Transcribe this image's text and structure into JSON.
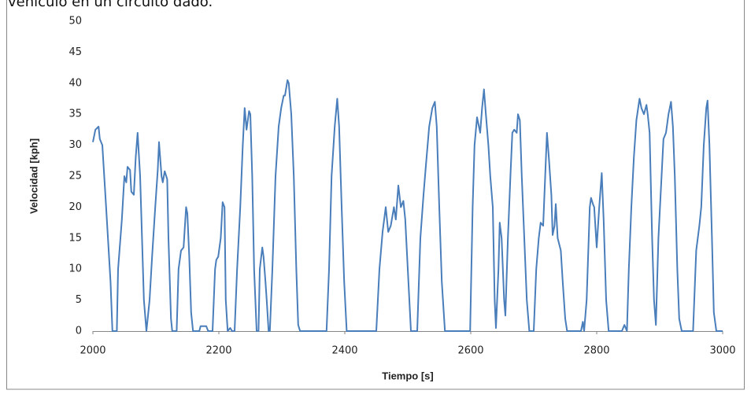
{
  "caption": "vehículo en un circuito dado.",
  "chart_data": {
    "type": "line",
    "x_label": "Tiempo [s]",
    "y_label": "Velocidad [kph]",
    "xlim": [
      2000,
      3000
    ],
    "xticks": [
      2000,
      2200,
      2400,
      2600,
      2800,
      3000
    ],
    "ylim": [
      0,
      50
    ],
    "yticks": [
      0,
      5,
      10,
      15,
      20,
      25,
      30,
      35,
      40,
      45,
      50
    ],
    "grid": false,
    "x": [
      2000,
      2004,
      2009,
      2011,
      2015,
      2021,
      2028,
      2031,
      2038,
      2040,
      2046,
      2050,
      2053,
      2055,
      2059,
      2061,
      2065,
      2068,
      2071,
      2075,
      2078,
      2081,
      2085,
      2090,
      2094,
      2099,
      2103,
      2105,
      2109,
      2111,
      2114,
      2118,
      2120,
      2124,
      2126,
      2133,
      2136,
      2140,
      2144,
      2148,
      2150,
      2153,
      2156,
      2159,
      2169,
      2171,
      2180,
      2183,
      2190,
      2194,
      2196,
      2199,
      2203,
      2206,
      2209,
      2211,
      2214,
      2218,
      2221,
      2225,
      2229,
      2234,
      2238,
      2241,
      2244,
      2248,
      2250,
      2253,
      2256,
      2260,
      2263,
      2265,
      2269,
      2271,
      2274,
      2276,
      2279,
      2281,
      2285,
      2290,
      2295,
      2299,
      2303,
      2305,
      2309,
      2311,
      2315,
      2319,
      2323,
      2326,
      2329,
      2371,
      2375,
      2379,
      2384,
      2388,
      2391,
      2395,
      2399,
      2403,
      2450,
      2455,
      2460,
      2465,
      2469,
      2473,
      2478,
      2481,
      2485,
      2489,
      2493,
      2496,
      2500,
      2505,
      2515,
      2520,
      2525,
      2529,
      2534,
      2539,
      2543,
      2546,
      2550,
      2554,
      2559,
      2599,
      2603,
      2606,
      2610,
      2613,
      2615,
      2618,
      2621,
      2624,
      2628,
      2631,
      2635,
      2638,
      2640,
      2644,
      2646,
      2649,
      2653,
      2655,
      2659,
      2663,
      2666,
      2669,
      2673,
      2675,
      2678,
      2681,
      2685,
      2689,
      2693,
      2700,
      2704,
      2708,
      2711,
      2715,
      2719,
      2721,
      2724,
      2728,
      2730,
      2733,
      2735,
      2738,
      2743,
      2746,
      2750,
      2753,
      2775,
      2778,
      2780,
      2784,
      2789,
      2791,
      2794,
      2796,
      2800,
      2804,
      2808,
      2811,
      2815,
      2819,
      2840,
      2844,
      2848,
      2851,
      2855,
      2859,
      2863,
      2868,
      2871,
      2875,
      2879,
      2881,
      2884,
      2888,
      2891,
      2894,
      2898,
      2903,
      2906,
      2910,
      2914,
      2918,
      2921,
      2924,
      2928,
      2931,
      2935,
      2953,
      2958,
      2963,
      2966,
      2970,
      2974,
      2976,
      2979,
      2983,
      2986,
      2990,
      3000
    ],
    "series": [
      {
        "color": "#4a7ebb",
        "values": [
          30.5,
          32.5,
          33,
          31,
          30,
          20,
          8,
          0,
          0,
          10,
          18,
          25,
          24,
          26.5,
          26,
          22.5,
          22,
          28,
          32,
          25,
          15,
          5,
          0,
          5,
          12,
          20,
          26,
          30.5,
          25,
          24,
          25.8,
          24.5,
          15,
          2,
          0,
          0,
          10,
          13,
          13.5,
          20,
          19,
          12,
          3,
          0,
          0,
          0.8,
          0.8,
          0,
          0,
          10,
          11.5,
          12,
          15,
          20.8,
          20,
          5,
          0,
          0.5,
          0,
          0,
          10,
          20,
          30,
          36,
          32.5,
          35.5,
          35,
          25,
          10,
          0,
          0,
          10,
          13.5,
          12,
          8,
          5,
          0,
          0,
          10,
          25,
          33,
          36,
          38,
          38,
          40.5,
          40,
          35,
          25,
          10,
          1,
          0,
          0,
          10,
          25,
          33,
          37.5,
          33,
          20,
          8,
          0,
          0,
          10,
          16,
          20,
          16,
          17,
          20,
          18,
          23.5,
          20,
          21,
          18,
          10,
          0,
          0,
          15,
          22,
          27,
          33,
          36,
          37,
          33,
          20,
          8,
          0,
          0,
          20,
          30,
          34.5,
          33,
          32,
          36,
          39,
          35,
          30,
          25,
          20,
          5,
          0.5,
          10,
          17.5,
          15,
          5,
          2.5,
          15,
          25,
          32,
          32.5,
          32,
          35,
          34,
          25,
          15,
          5,
          0,
          0,
          10,
          15,
          17.5,
          17,
          27,
          32,
          28,
          22,
          15.5,
          17,
          20.5,
          15,
          13,
          8,
          2,
          0,
          0,
          1.5,
          0,
          5,
          20,
          21.5,
          20.5,
          20,
          13.5,
          20,
          25.5,
          18,
          5,
          0,
          0,
          1,
          0,
          10,
          20,
          28,
          34,
          37.5,
          36,
          35,
          36.5,
          35,
          32,
          15,
          5,
          1,
          15,
          25,
          31,
          32,
          35,
          37,
          33,
          25,
          10,
          2,
          0,
          0,
          13,
          17,
          20,
          30,
          36,
          37.2,
          30,
          15,
          3,
          0,
          0
        ]
      }
    ]
  }
}
